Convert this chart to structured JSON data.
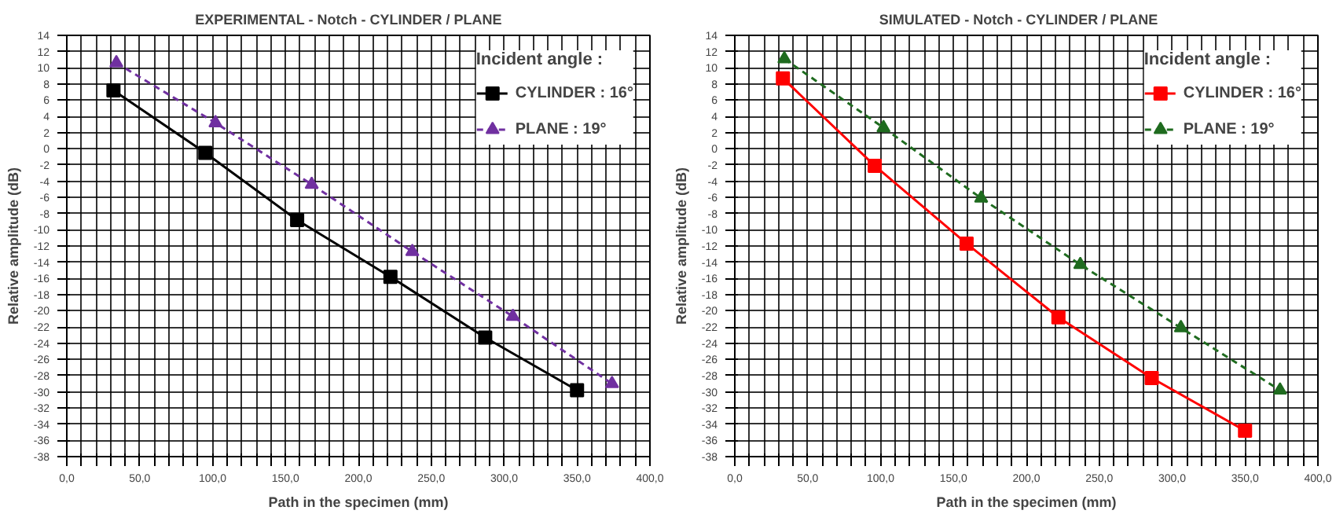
{
  "chart_data": [
    {
      "type": "line",
      "title": "EXPERIMENTAL   - Notch  - CYLINDER   / PLANE",
      "xlabel": "Path in the specimen (mm)",
      "ylabel": "Relative amplitude (dB)",
      "legend_title": "Incident angle :",
      "legend": "top right",
      "grid": true,
      "xlim": [
        0,
        400
      ],
      "ylim": [
        -38,
        14
      ],
      "xticks": [
        {
          "value": 0,
          "label": "0,0"
        },
        {
          "value": 10,
          "label": null
        },
        {
          "value": 20,
          "label": null
        },
        {
          "value": 30,
          "label": null
        },
        {
          "value": 40,
          "label": null
        },
        {
          "value": 50,
          "label": "50,0"
        },
        {
          "value": 60,
          "label": null
        },
        {
          "value": 70,
          "label": null
        },
        {
          "value": 80,
          "label": null
        },
        {
          "value": 90,
          "label": null
        },
        {
          "value": 100,
          "label": "100,0"
        },
        {
          "value": 110,
          "label": null
        },
        {
          "value": 120,
          "label": null
        },
        {
          "value": 130,
          "label": null
        },
        {
          "value": 140,
          "label": null
        },
        {
          "value": 150,
          "label": "150,0"
        },
        {
          "value": 160,
          "label": null
        },
        {
          "value": 170,
          "label": null
        },
        {
          "value": 180,
          "label": null
        },
        {
          "value": 190,
          "label": null
        },
        {
          "value": 200,
          "label": "200,0"
        },
        {
          "value": 210,
          "label": null
        },
        {
          "value": 220,
          "label": null
        },
        {
          "value": 230,
          "label": null
        },
        {
          "value": 240,
          "label": null
        },
        {
          "value": 250,
          "label": "250,0"
        },
        {
          "value": 260,
          "label": null
        },
        {
          "value": 270,
          "label": null
        },
        {
          "value": 280,
          "label": null
        },
        {
          "value": 290,
          "label": null
        },
        {
          "value": 300,
          "label": "300,0"
        },
        {
          "value": 310,
          "label": null
        },
        {
          "value": 320,
          "label": null
        },
        {
          "value": 330,
          "label": null
        },
        {
          "value": 340,
          "label": null
        },
        {
          "value": 350,
          "label": "350,0"
        },
        {
          "value": 360,
          "label": null
        },
        {
          "value": 370,
          "label": null
        },
        {
          "value": 380,
          "label": null
        },
        {
          "value": 390,
          "label": null
        },
        {
          "value": 400,
          "label": "400,0"
        }
      ],
      "yticks": [
        -38,
        -36,
        -34,
        -32,
        -30,
        -28,
        -26,
        -24,
        -22,
        -20,
        -18,
        -16,
        -14,
        -12,
        -10,
        -8,
        -6,
        -4,
        -2,
        0,
        2,
        4,
        6,
        8,
        10,
        12,
        14
      ],
      "series": [
        {
          "name": "CYLINDER : 16°",
          "color": "#000000",
          "marker": "square",
          "line_style": "solid",
          "x": [
            32,
            95,
            158,
            222,
            287,
            350
          ],
          "values": [
            7.2,
            -0.5,
            -8.8,
            -15.8,
            -23.3,
            -29.8
          ]
        },
        {
          "name": "PLANE : 19°",
          "color": "#7030a0",
          "marker": "triangle",
          "line_style": "dashed",
          "x": [
            34,
            102,
            168,
            237,
            306,
            374
          ],
          "values": [
            10.6,
            3.2,
            -4.4,
            -12.7,
            -20.7,
            -29.0
          ]
        }
      ]
    },
    {
      "type": "line",
      "title": "SIMULATED  - Notch  - CYLINDER   / PLANE",
      "xlabel": "Path in the specimen (mm)",
      "ylabel": "Relative amplitude (dB)",
      "legend_title": "Incident angle :",
      "legend": "top right",
      "grid": true,
      "xlim": [
        0,
        400
      ],
      "ylim": [
        -38,
        14
      ],
      "xticks": [
        {
          "value": 0,
          "label": "0,0"
        },
        {
          "value": 10,
          "label": null
        },
        {
          "value": 20,
          "label": null
        },
        {
          "value": 30,
          "label": null
        },
        {
          "value": 40,
          "label": null
        },
        {
          "value": 50,
          "label": "50,0"
        },
        {
          "value": 60,
          "label": null
        },
        {
          "value": 70,
          "label": null
        },
        {
          "value": 80,
          "label": null
        },
        {
          "value": 90,
          "label": null
        },
        {
          "value": 100,
          "label": "100,0"
        },
        {
          "value": 110,
          "label": null
        },
        {
          "value": 120,
          "label": null
        },
        {
          "value": 130,
          "label": null
        },
        {
          "value": 140,
          "label": null
        },
        {
          "value": 150,
          "label": "150,0"
        },
        {
          "value": 160,
          "label": null
        },
        {
          "value": 170,
          "label": null
        },
        {
          "value": 180,
          "label": null
        },
        {
          "value": 190,
          "label": null
        },
        {
          "value": 200,
          "label": "200,0"
        },
        {
          "value": 210,
          "label": null
        },
        {
          "value": 220,
          "label": null
        },
        {
          "value": 230,
          "label": null
        },
        {
          "value": 240,
          "label": null
        },
        {
          "value": 250,
          "label": "250,0"
        },
        {
          "value": 260,
          "label": null
        },
        {
          "value": 270,
          "label": null
        },
        {
          "value": 280,
          "label": null
        },
        {
          "value": 290,
          "label": null
        },
        {
          "value": 300,
          "label": "300,0"
        },
        {
          "value": 310,
          "label": null
        },
        {
          "value": 320,
          "label": null
        },
        {
          "value": 330,
          "label": null
        },
        {
          "value": 340,
          "label": null
        },
        {
          "value": 350,
          "label": "350,0"
        },
        {
          "value": 360,
          "label": null
        },
        {
          "value": 370,
          "label": null
        },
        {
          "value": 380,
          "label": null
        },
        {
          "value": 390,
          "label": null
        },
        {
          "value": 400,
          "label": "400,0"
        }
      ],
      "yticks": [
        -38,
        -36,
        -34,
        -32,
        -30,
        -28,
        -26,
        -24,
        -22,
        -20,
        -18,
        -16,
        -14,
        -12,
        -10,
        -8,
        -6,
        -4,
        -2,
        0,
        2,
        4,
        6,
        8,
        10,
        12,
        14
      ],
      "series": [
        {
          "name": "CYLINDER : 16°",
          "color": "#ff0000",
          "marker": "square",
          "line_style": "solid",
          "x": [
            33,
            96,
            159,
            222,
            286,
            350
          ],
          "values": [
            8.7,
            -2.1,
            -11.7,
            -20.8,
            -28.3,
            -34.8
          ]
        },
        {
          "name": "PLANE : 19°",
          "color": "#1f6b1f",
          "marker": "triangle",
          "line_style": "dashed",
          "x": [
            34,
            102,
            169,
            237,
            306,
            374
          ],
          "values": [
            11.1,
            2.6,
            -6.1,
            -14.3,
            -22.1,
            -29.8
          ]
        }
      ]
    }
  ]
}
